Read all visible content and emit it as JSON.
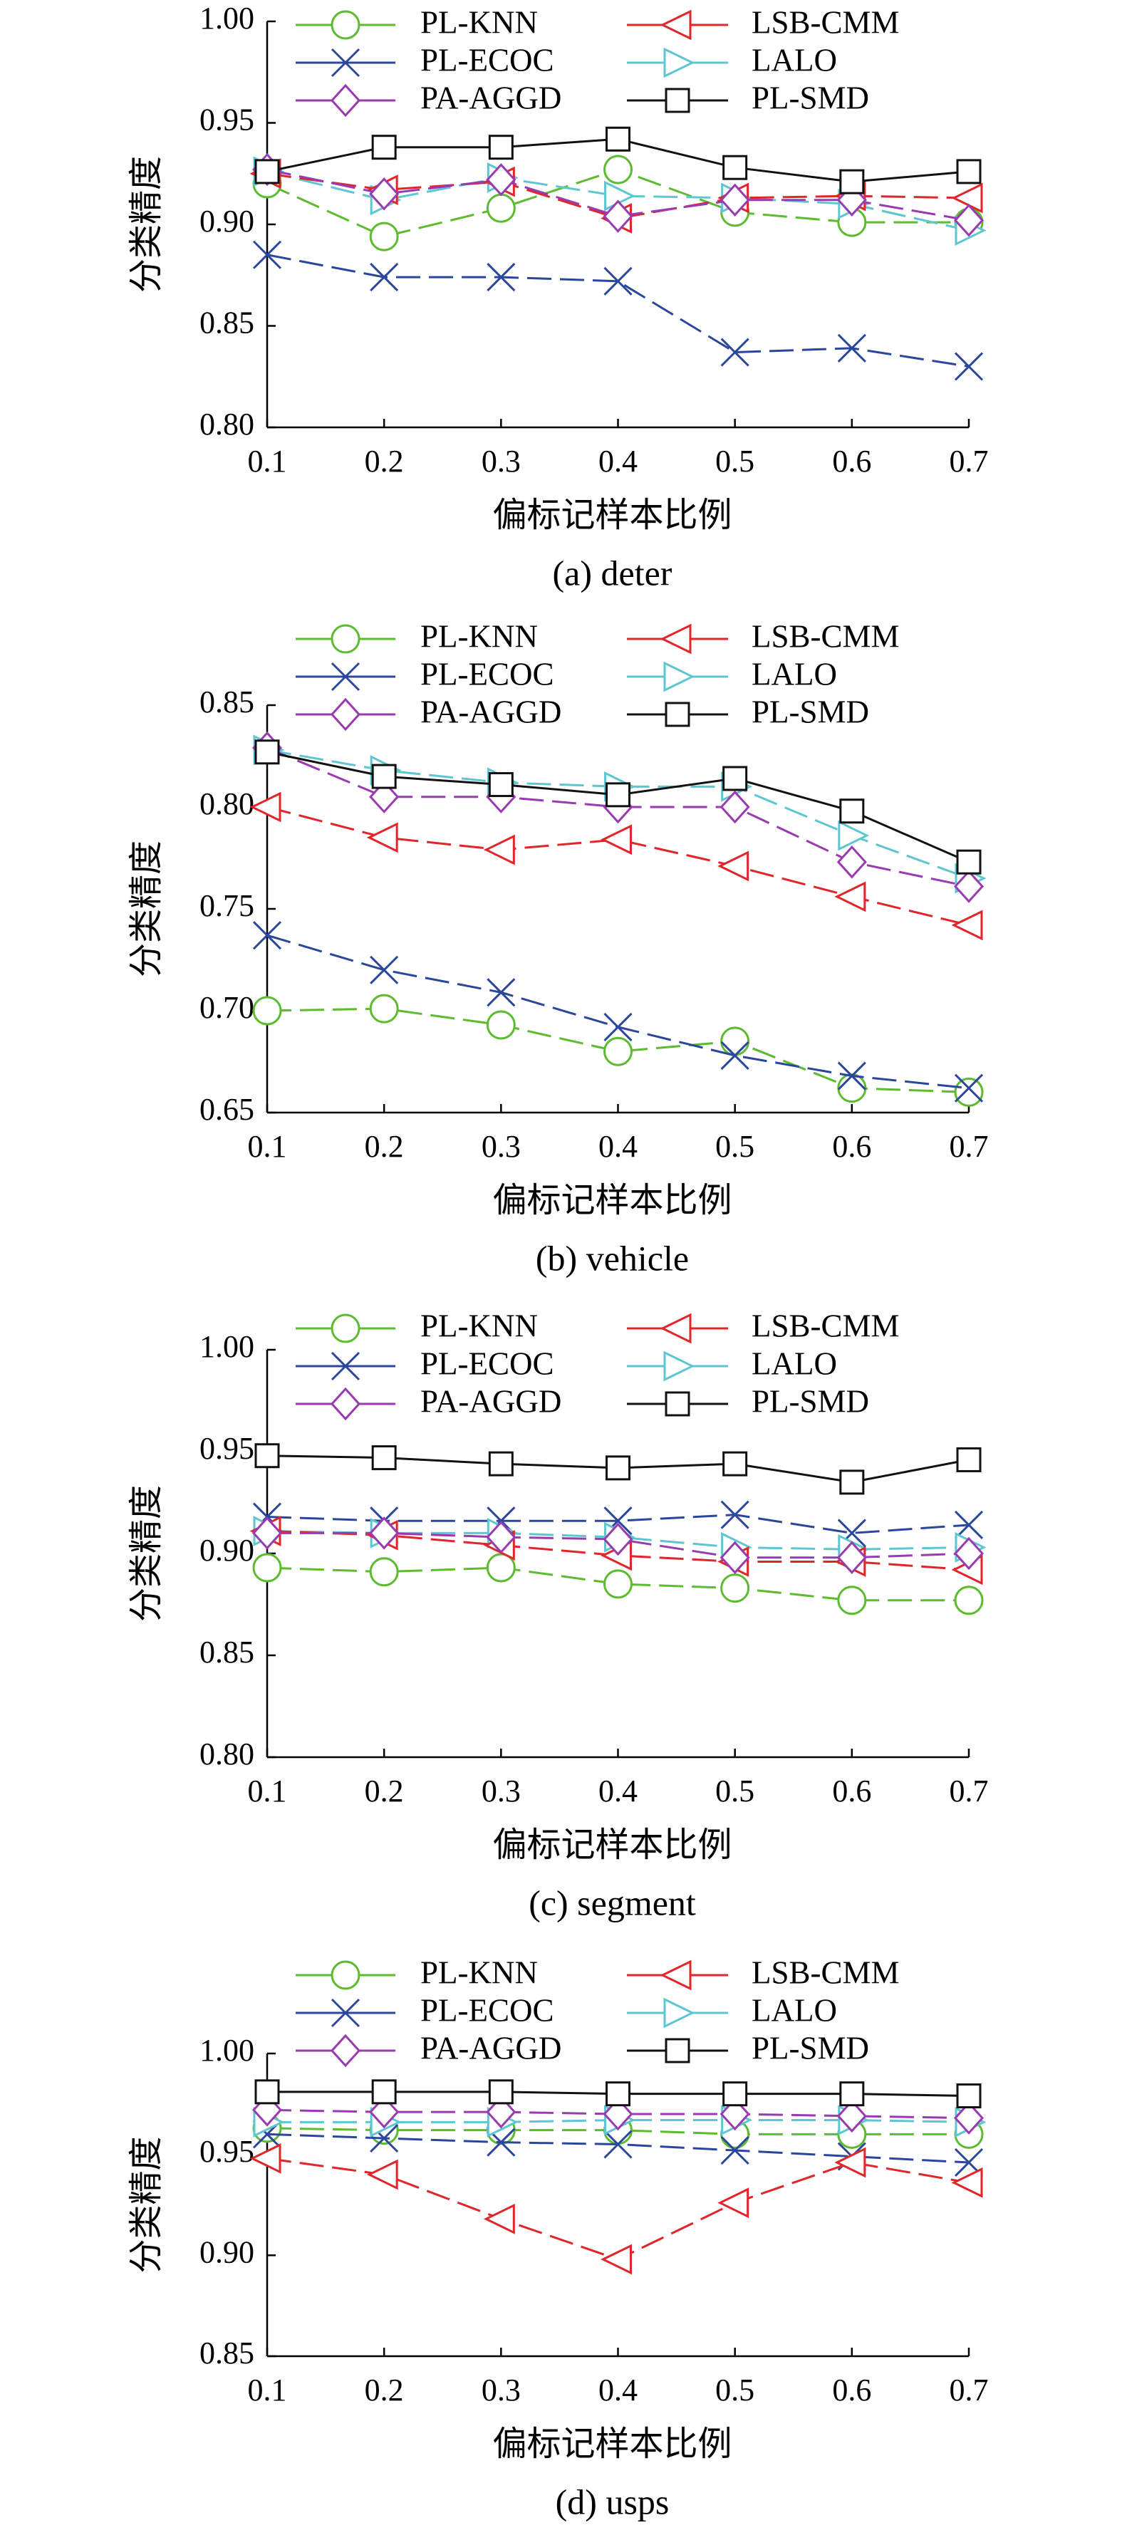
{
  "chart_data": [
    {
      "type": "line",
      "caption": "(a) deter",
      "xlabel": "偏标记样本比例",
      "ylabel": "分类精度",
      "x": [
        0.1,
        0.2,
        0.3,
        0.4,
        0.5,
        0.6,
        0.7
      ],
      "x_tick_labels": [
        "0.1",
        "0.2",
        "0.3",
        "0.4",
        "0.5",
        "0.6",
        "0.7"
      ],
      "ylim": [
        0.8,
        1.0
      ],
      "y_ticks": [
        0.8,
        0.85,
        0.9,
        0.95,
        1.0
      ],
      "y_tick_labels": [
        "0.80",
        "0.85",
        "0.90",
        "0.95",
        "1.00"
      ],
      "series": [
        {
          "name": "PL-KNN",
          "values": [
            0.92,
            0.894,
            0.908,
            0.927,
            0.906,
            0.901,
            0.901
          ]
        },
        {
          "name": "PL-ECOC",
          "values": [
            0.885,
            0.874,
            0.874,
            0.872,
            0.837,
            0.839,
            0.83
          ]
        },
        {
          "name": "PA-AGGD",
          "values": [
            0.927,
            0.915,
            0.922,
            0.904,
            0.912,
            0.912,
            0.902
          ]
        },
        {
          "name": "LSB-CMM",
          "values": [
            0.925,
            0.917,
            0.921,
            0.903,
            0.913,
            0.914,
            0.913
          ]
        },
        {
          "name": "LALO",
          "values": [
            0.926,
            0.912,
            0.923,
            0.914,
            0.913,
            0.91,
            0.897
          ]
        },
        {
          "name": "PL-SMD",
          "values": [
            0.926,
            0.938,
            0.938,
            0.942,
            0.928,
            0.921,
            0.926
          ]
        }
      ]
    },
    {
      "type": "line",
      "caption": "(b) vehicle",
      "xlabel": "偏标记样本比例",
      "ylabel": "分类精度",
      "x": [
        0.1,
        0.2,
        0.3,
        0.4,
        0.5,
        0.6,
        0.7
      ],
      "x_tick_labels": [
        "0.1",
        "0.2",
        "0.3",
        "0.4",
        "0.5",
        "0.6",
        "0.7"
      ],
      "ylim": [
        0.65,
        0.85
      ],
      "y_ticks": [
        0.65,
        0.7,
        0.75,
        0.8,
        0.85
      ],
      "y_tick_labels": [
        "0.65",
        "0.70",
        "0.75",
        "0.80",
        "0.85"
      ],
      "series": [
        {
          "name": "PL-KNN",
          "values": [
            0.7,
            0.701,
            0.693,
            0.68,
            0.685,
            0.662,
            0.66
          ]
        },
        {
          "name": "PL-ECOC",
          "values": [
            0.737,
            0.72,
            0.709,
            0.692,
            0.678,
            0.668,
            0.662
          ]
        },
        {
          "name": "PA-AGGD",
          "values": [
            0.829,
            0.805,
            0.805,
            0.8,
            0.8,
            0.773,
            0.761
          ]
        },
        {
          "name": "LSB-CMM",
          "values": [
            0.8,
            0.785,
            0.779,
            0.784,
            0.771,
            0.756,
            0.742
          ]
        },
        {
          "name": "LALO",
          "values": [
            0.828,
            0.818,
            0.812,
            0.81,
            0.81,
            0.786,
            0.765
          ]
        },
        {
          "name": "PL-SMD",
          "values": [
            0.827,
            0.815,
            0.811,
            0.806,
            0.814,
            0.798,
            0.773
          ]
        }
      ]
    },
    {
      "type": "line",
      "caption": "(c) segment",
      "xlabel": "偏标记样本比例",
      "ylabel": "分类精度",
      "x": [
        0.1,
        0.2,
        0.3,
        0.4,
        0.5,
        0.6,
        0.7
      ],
      "x_tick_labels": [
        "0.1",
        "0.2",
        "0.3",
        "0.4",
        "0.5",
        "0.6",
        "0.7"
      ],
      "ylim": [
        0.8,
        1.0
      ],
      "y_ticks": [
        0.8,
        0.85,
        0.9,
        0.95,
        1.0
      ],
      "y_tick_labels": [
        "0.80",
        "0.85",
        "0.90",
        "0.95",
        "1.00"
      ],
      "series": [
        {
          "name": "PL-KNN",
          "values": [
            0.893,
            0.891,
            0.893,
            0.885,
            0.883,
            0.877,
            0.877
          ]
        },
        {
          "name": "PL-ECOC",
          "values": [
            0.918,
            0.916,
            0.916,
            0.916,
            0.919,
            0.91,
            0.914
          ]
        },
        {
          "name": "PA-AGGD",
          "values": [
            0.91,
            0.91,
            0.908,
            0.907,
            0.898,
            0.898,
            0.9
          ]
        },
        {
          "name": "LSB-CMM",
          "values": [
            0.911,
            0.909,
            0.904,
            0.899,
            0.896,
            0.896,
            0.892
          ]
        },
        {
          "name": "LALO",
          "values": [
            0.911,
            0.91,
            0.91,
            0.908,
            0.903,
            0.902,
            0.903
          ]
        },
        {
          "name": "PL-SMD",
          "values": [
            0.948,
            0.947,
            0.944,
            0.942,
            0.944,
            0.935,
            0.946
          ]
        }
      ]
    },
    {
      "type": "line",
      "caption": "(d) usps",
      "xlabel": "偏标记样本比例",
      "ylabel": "分类精度",
      "x": [
        0.1,
        0.2,
        0.3,
        0.4,
        0.5,
        0.6,
        0.7
      ],
      "x_tick_labels": [
        "0.1",
        "0.2",
        "0.3",
        "0.4",
        "0.5",
        "0.6",
        "0.7"
      ],
      "ylim": [
        0.85,
        1.0
      ],
      "y_ticks": [
        0.85,
        0.9,
        0.95,
        1.0
      ],
      "y_tick_labels": [
        "0.85",
        "0.90",
        "0.95",
        "1.00"
      ],
      "series": [
        {
          "name": "PL-KNN",
          "values": [
            0.963,
            0.962,
            0.962,
            0.962,
            0.96,
            0.96,
            0.96
          ]
        },
        {
          "name": "PL-ECOC",
          "values": [
            0.96,
            0.958,
            0.956,
            0.955,
            0.952,
            0.949,
            0.946
          ]
        },
        {
          "name": "PA-AGGD",
          "values": [
            0.972,
            0.971,
            0.971,
            0.97,
            0.97,
            0.969,
            0.968
          ]
        },
        {
          "name": "LSB-CMM",
          "values": [
            0.948,
            0.94,
            0.918,
            0.898,
            0.926,
            0.946,
            0.936
          ]
        },
        {
          "name": "LALO",
          "values": [
            0.966,
            0.966,
            0.966,
            0.967,
            0.967,
            0.967,
            0.966
          ]
        },
        {
          "name": "PL-SMD",
          "values": [
            0.981,
            0.981,
            0.981,
            0.98,
            0.98,
            0.98,
            0.979
          ]
        }
      ]
    }
  ],
  "series_styles": {
    "PL-KNN": {
      "color": "#5dbb2f",
      "marker": "circle",
      "dash": "dashed"
    },
    "PL-ECOC": {
      "color": "#2b479c",
      "marker": "x",
      "dash": "dashed"
    },
    "PA-AGGD": {
      "color": "#9a3ab0",
      "marker": "diamond",
      "dash": "dashed"
    },
    "LSB-CMM": {
      "color": "#e0262b",
      "marker": "triangle-left",
      "dash": "dashed"
    },
    "LALO": {
      "color": "#5ec6d0",
      "marker": "triangle-right",
      "dash": "dashed"
    },
    "PL-SMD": {
      "color": "#111111",
      "marker": "square",
      "dash": "solid"
    }
  },
  "legend": {
    "entries": [
      "PL-KNN",
      "LSB-CMM",
      "PL-ECOC",
      "LALO",
      "PA-AGGD",
      "PL-SMD"
    ],
    "placement": "top"
  }
}
